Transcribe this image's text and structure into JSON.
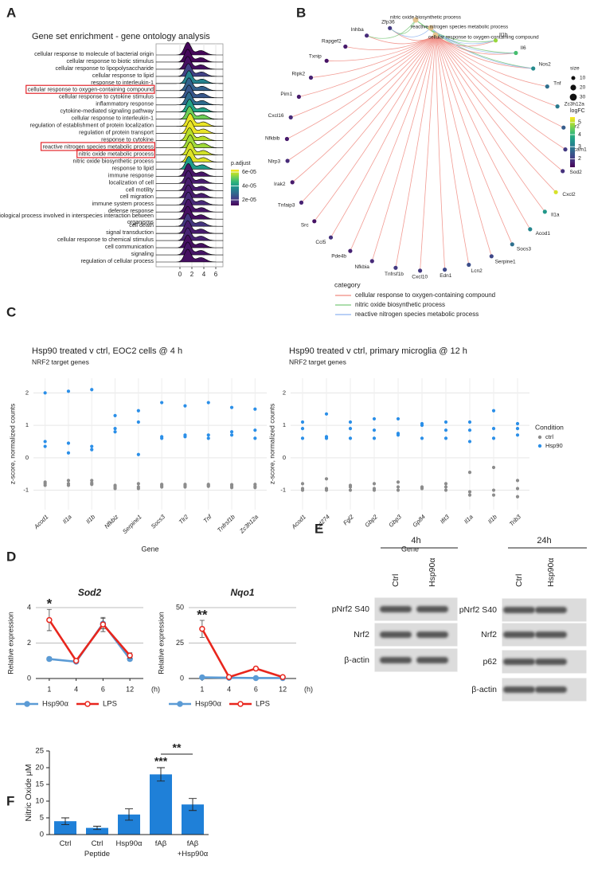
{
  "panel_labels": [
    "A",
    "B",
    "C",
    "D",
    "E",
    "F"
  ],
  "chart_data": [
    {
      "type": "ridge",
      "title": "Gene set enrichment - gene ontology analysis",
      "categories": [
        "cellular response to molecule of bacterial origin",
        "cellular response to biotic stimulus",
        "cellular response to lipopolysaccharide",
        "cellular response to lipid",
        "response to interleukin-1",
        "cellular response to oxygen-containing compound",
        "cellular response to cytokine stimulus",
        "inflammatory response",
        "cytokine-mediated signaling pathway",
        "cellular response to interleukin-1",
        "regulation of establishment of protein localization",
        "regulation of protein transport",
        "response to cytokine",
        "reactive nitrogen species metabolic process",
        "nitric oxide metabolic process",
        "nitric oxide biosynthetic process",
        "response to lipid",
        "immune response",
        "localization of cell",
        "cell motility",
        "cell migration",
        "immune system process",
        "defense response",
        [
          "biological process involved in interspecies interaction between",
          "organisms"
        ],
        "cell death",
        "signal transduction",
        "cellular response to chemical stimulus",
        "cell communication",
        "signaling",
        "regulation of cellular process"
      ],
      "peaks": [
        1.3,
        1.3,
        1.3,
        1.4,
        1.5,
        1.5,
        1.5,
        1.5,
        1.6,
        1.6,
        1.7,
        1.7,
        1.6,
        1.7,
        1.7,
        1.7,
        1.5,
        1.4,
        1.4,
        1.4,
        1.4,
        1.4,
        1.4,
        1.3,
        1.3,
        1.3,
        1.3,
        1.3,
        1.3,
        1.3
      ],
      "padj": [
        1.3e-05,
        1.3e-05,
        1.4e-05,
        2.2e-05,
        3.5e-05,
        2.8e-05,
        2.6e-05,
        3e-05,
        4.2e-05,
        5.2e-05,
        6.2e-05,
        6.2e-05,
        5.8e-05,
        5.6e-05,
        6e-05,
        6.1e-05,
        4e-05,
        1.5e-05,
        1.6e-05,
        1.6e-05,
        1.6e-05,
        1.8e-05,
        1.5e-05,
        1.4e-05,
        2e-05,
        1.6e-05,
        1.7e-05,
        1.4e-05,
        1.5e-05,
        1.4e-05
      ],
      "highlight": [
        5,
        13,
        14
      ],
      "xlim": [
        -4,
        7.2
      ],
      "xticks": [
        0,
        2,
        4,
        6
      ],
      "grid": true,
      "colorbar": {
        "title": "p.adjust",
        "lim": [
          1.2e-05,
          6.35e-05
        ],
        "ticks": [
          {
            "value": 6e-05,
            "label": "6e-05"
          },
          {
            "value": 4e-05,
            "label": "4e-05"
          },
          {
            "value": 2e-05,
            "label": "2e-05"
          }
        ]
      }
    },
    {
      "type": "network",
      "legend_title": "category",
      "categories": [
        "cellular response to oxygen-containing compound",
        "nitric oxide biosynthetic process",
        "reactive nitrogen species metabolic process"
      ],
      "category_colors": [
        "#f08a80",
        "#7cc97c",
        "#8fb4f0"
      ],
      "genes": [
        {
          "name": "Zfp36",
          "logFC": 2.0,
          "links": [
            0,
            1,
            2
          ]
        },
        {
          "name": "Inhba",
          "logFC": 1.8,
          "links": [
            0,
            1
          ]
        },
        {
          "name": "Rapgef2",
          "logFC": 1.6,
          "links": [
            0
          ]
        },
        {
          "name": "Txnip",
          "logFC": 1.5,
          "links": [
            0
          ]
        },
        {
          "name": "Ripk2",
          "logFC": 1.7,
          "links": [
            0
          ]
        },
        {
          "name": "Pim1",
          "logFC": 1.6,
          "links": [
            0
          ]
        },
        {
          "name": "Cxcl16",
          "logFC": 1.8,
          "links": [
            0
          ]
        },
        {
          "name": "Nfkbib",
          "logFC": 1.6,
          "links": [
            0
          ]
        },
        {
          "name": "Nlrp3",
          "logFC": 1.8,
          "links": [
            0
          ]
        },
        {
          "name": "Irak2",
          "logFC": 1.6,
          "links": [
            0
          ]
        },
        {
          "name": "Tnfaip3",
          "logFC": 1.7,
          "links": [
            0
          ]
        },
        {
          "name": "Src",
          "logFC": 1.5,
          "links": [
            0
          ]
        },
        {
          "name": "Ccl5",
          "logFC": 1.9,
          "links": [
            0
          ]
        },
        {
          "name": "Pde4b",
          "logFC": 1.7,
          "links": [
            0
          ]
        },
        {
          "name": "Nfkbia",
          "logFC": 1.8,
          "links": [
            0
          ]
        },
        {
          "name": "Tnfrsf1b",
          "logFC": 2.0,
          "links": [
            0
          ]
        },
        {
          "name": "Cxcl10",
          "logFC": 2.0,
          "links": [
            0
          ]
        },
        {
          "name": "Edn1",
          "logFC": 2.2,
          "links": [
            0
          ]
        },
        {
          "name": "Lcn2",
          "logFC": 2.3,
          "links": [
            0
          ]
        },
        {
          "name": "Serpine1",
          "logFC": 2.2,
          "links": [
            0
          ]
        },
        {
          "name": "Socs3",
          "logFC": 2.8,
          "links": [
            0
          ]
        },
        {
          "name": "Acod1",
          "logFC": 3.2,
          "links": [
            0
          ]
        },
        {
          "name": "Il1a",
          "logFC": 3.5,
          "links": [
            0
          ]
        },
        {
          "name": "Cxcl2",
          "logFC": 5.2,
          "links": [
            0
          ]
        },
        {
          "name": "Sod2",
          "logFC": 1.9,
          "links": [
            0
          ]
        },
        {
          "name": "Icam1",
          "logFC": 2.0,
          "links": [
            0
          ]
        },
        {
          "name": "Tlr2",
          "logFC": 2.5,
          "links": [
            0
          ]
        },
        {
          "name": "Zc3h12a",
          "logFC": 3.0,
          "links": [
            0
          ]
        },
        {
          "name": "Tnf",
          "logFC": 2.8,
          "links": [
            0
          ]
        },
        {
          "name": "Nos2",
          "logFC": 3.3,
          "links": [
            0,
            1,
            2
          ]
        },
        {
          "name": "Il6",
          "logFC": 4.2,
          "links": [
            0,
            1,
            2
          ]
        },
        {
          "name": "Il1b",
          "logFC": 4.8,
          "links": [
            0,
            1,
            2
          ]
        }
      ],
      "size_legend": {
        "title": "size",
        "ticks": [
          10,
          20,
          30
        ]
      },
      "colorbar": {
        "title": "logFC",
        "lim": [
          1.3,
          5.45
        ],
        "ticks": [
          5,
          4,
          3,
          2
        ]
      }
    },
    {
      "type": "dot",
      "title": "Hsp90 treated v ctrl, EOC2 cells @ 4 h",
      "subtitle": "NRF2 target genes",
      "xlabel": "Gene",
      "ylabel": "z-score, normalized counts",
      "categories": [
        "Acod1",
        "Il1a",
        "Il1b",
        "Nfkbiz",
        "Serpine1",
        "Socs3",
        "Tlr2",
        "Tnf",
        "Tnfrsf1b",
        "Zc3h12a"
      ],
      "series": [
        {
          "name": "ctrl",
          "color": "#8c8c8c",
          "values": [
            [
              -0.75,
              -0.8,
              -0.85
            ],
            [
              -0.7,
              -0.8,
              -0.85
            ],
            [
              -0.7,
              -0.78,
              -0.82
            ],
            [
              -0.85,
              -0.9,
              -0.95
            ],
            [
              -0.8,
              -0.9,
              -0.95
            ],
            [
              -0.82,
              -0.86,
              -0.9
            ],
            [
              -0.82,
              -0.86,
              -0.9
            ],
            [
              -0.82,
              -0.85,
              -0.88
            ],
            [
              -0.83,
              -0.87,
              -0.92
            ],
            [
              -0.82,
              -0.88,
              -0.92
            ]
          ]
        },
        {
          "name": "Hsp90",
          "color": "#2b8fe8",
          "values": [
            [
              2.0,
              0.5,
              0.35
            ],
            [
              2.05,
              0.45,
              0.15
            ],
            [
              2.1,
              0.35,
              0.25
            ],
            [
              1.3,
              0.9,
              0.8
            ],
            [
              1.45,
              1.1,
              0.1
            ],
            [
              1.7,
              0.65,
              0.6
            ],
            [
              1.6,
              0.7,
              0.65
            ],
            [
              1.7,
              0.7,
              0.6
            ],
            [
              1.55,
              0.8,
              0.7
            ],
            [
              1.5,
              0.85,
              0.6
            ]
          ]
        }
      ],
      "ylim": [
        -1.6,
        2.45
      ],
      "yticks": [
        -1,
        0,
        1,
        2
      ],
      "grid": true
    },
    {
      "type": "dot",
      "title": "Hsp90 treated v ctrl, primary microglia @ 12 h",
      "subtitle": "NRF2 target genes",
      "xlabel": "Gene",
      "ylabel": "z-score, normalized counts",
      "legend_title": "Condition",
      "categories": [
        "Acod1",
        "Cd274",
        "Fgl2",
        "Gbp2",
        "Gbp3",
        "Gp84",
        "Ifit3",
        "Il1a",
        "Il1b",
        "Trib3"
      ],
      "series": [
        {
          "name": "ctrl",
          "color": "#8c8c8c",
          "values": [
            [
              -0.8,
              -0.95,
              -1.0
            ],
            [
              -0.65,
              -0.95,
              -1.0
            ],
            [
              -0.85,
              -0.9,
              -1.0
            ],
            [
              -0.8,
              -0.95,
              -1.0
            ],
            [
              -0.75,
              -0.9,
              -1.0
            ],
            [
              -0.9,
              -0.92,
              -0.95
            ],
            [
              -0.8,
              -0.9,
              -1.0
            ],
            [
              -0.45,
              -1.05,
              -1.15
            ],
            [
              -0.3,
              -1.0,
              -1.15
            ],
            [
              -0.7,
              -0.95,
              -1.2
            ]
          ]
        },
        {
          "name": "Hsp90",
          "color": "#2b8fe8",
          "values": [
            [
              1.1,
              0.9,
              0.6
            ],
            [
              1.35,
              0.65,
              0.6
            ],
            [
              1.1,
              0.9,
              0.6
            ],
            [
              1.2,
              0.85,
              0.6
            ],
            [
              1.2,
              0.75,
              0.7
            ],
            [
              1.05,
              1.0,
              0.6
            ],
            [
              1.1,
              0.85,
              0.6
            ],
            [
              1.1,
              0.85,
              0.5
            ],
            [
              1.45,
              0.9,
              0.6
            ],
            [
              1.05,
              0.9,
              0.7
            ]
          ]
        }
      ],
      "ylim": [
        -1.6,
        2.45
      ],
      "yticks": [
        -1,
        0,
        1,
        2
      ],
      "grid": true
    },
    {
      "type": "line",
      "title": "Sod2",
      "ylabel": "Relative expression",
      "xunit": "(h)",
      "categories": [
        "1",
        "4",
        "6",
        "12"
      ],
      "series": [
        {
          "name": "Hsp90α",
          "color": "#5b9bd5",
          "values": [
            1.1,
            0.95,
            3.1,
            1.1
          ],
          "errors": [
            0.1,
            0.05,
            0.3,
            0.1
          ]
        },
        {
          "name": "LPS",
          "color": "#e8261d",
          "values": [
            3.3,
            1.0,
            3.05,
            1.3
          ],
          "errors": [
            0.6,
            0.05,
            0.4,
            0.15
          ]
        }
      ],
      "significance": [
        "*",
        null,
        null,
        null
      ],
      "ylim": [
        0,
        4
      ],
      "yticks": [
        0,
        2,
        4
      ],
      "grid": true
    },
    {
      "type": "line",
      "title": "Nqo1",
      "ylabel": "Relative expression",
      "xunit": "(h)",
      "categories": [
        "1",
        "4",
        "6",
        "12"
      ],
      "series": [
        {
          "name": "Hsp90α",
          "color": "#5b9bd5",
          "values": [
            0.8,
            0.5,
            0.3,
            0.3
          ],
          "errors": [
            0.3,
            0.2,
            0.1,
            0.1
          ]
        },
        {
          "name": "LPS",
          "color": "#e8261d",
          "values": [
            35,
            1,
            7,
            1
          ],
          "errors": [
            6,
            0.3,
            0.5,
            0.3
          ]
        }
      ],
      "significance": [
        "**",
        null,
        null,
        null
      ],
      "ylim": [
        0,
        50
      ],
      "yticks": [
        0,
        25,
        50
      ],
      "grid": true
    },
    {
      "type": "bar",
      "ylabel": "Nitric Oxide μM",
      "color": "#1f80d8",
      "categories": [
        [
          "Ctrl"
        ],
        [
          "Ctrl",
          "Peptide"
        ],
        [
          "Hsp90α"
        ],
        [
          "fAβ"
        ],
        [
          "fAβ",
          "+Hsp90α"
        ]
      ],
      "values": [
        4,
        2,
        6,
        18,
        9
      ],
      "errors": [
        1,
        0.5,
        1.7,
        2,
        1.8
      ],
      "significance": [
        null,
        null,
        null,
        "***",
        null
      ],
      "brackets": [
        {
          "from": 3,
          "to": 4,
          "label": "**"
        }
      ],
      "ylim": [
        0,
        25
      ],
      "yticks": [
        0,
        5,
        10,
        15,
        20,
        25
      ]
    }
  ],
  "western_blot": {
    "panels": [
      {
        "time": "4h",
        "lanes": [
          "Ctrl",
          "Hsp90α"
        ],
        "rows": [
          "pNrf2 S40",
          "Nrf2",
          "β-actin"
        ]
      },
      {
        "time": "24h",
        "lanes": [
          "Ctrl",
          "Hsp90α"
        ],
        "rows": [
          "pNrf2 S40",
          "Nrf2",
          "p62",
          "β-actin"
        ]
      }
    ]
  }
}
